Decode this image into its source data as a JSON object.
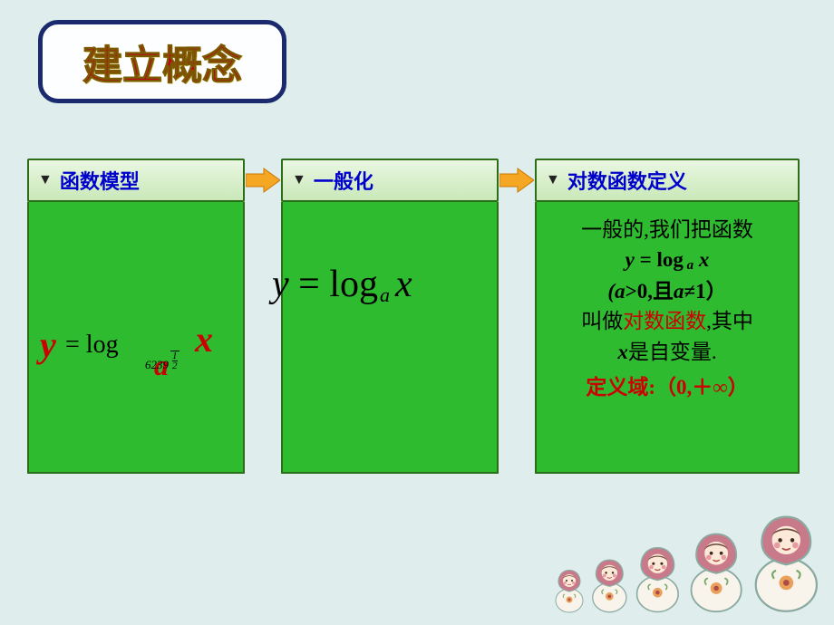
{
  "title": "建立概念",
  "panels": [
    {
      "heading": "函数模型"
    },
    {
      "heading": "一般化"
    },
    {
      "heading": "对数函数定义"
    }
  ],
  "formula1": {
    "y": "y",
    "eq": "= log",
    "a": "a",
    "x": "x",
    "sub_idx": "6239",
    "sub_root_num": "1",
    "sub_root_den": "2"
  },
  "formula2": {
    "y": "y",
    "eq": " = ",
    "log": "log",
    "a": "a",
    "x": "x"
  },
  "definition": {
    "l1a": "一般的,我们把函数",
    "l2_y": "y",
    "l2_eq": " = log",
    "l2_a": " a",
    "l2_x": " x",
    "l3": "(a>0,且a≠1）",
    "l4a": "叫做",
    "l4b": "对数函数",
    "l4c": ",其中",
    "l5a": "x",
    "l5b": "是自变量.",
    "domain_label": "定义域:",
    "domain_value": "（0,＋∞）"
  },
  "colors": {
    "bg": "#dfeeed",
    "panel_body": "#2fbb2f",
    "panel_border": "#2a6e1a",
    "heading_text": "#0000cc",
    "title_text": "#c00020",
    "accent_red": "#cc0000",
    "arrow_fill": "#f5a623",
    "arrow_stroke": "#c97a00"
  },
  "doll_heights": [
    50,
    62,
    76,
    92,
    112
  ]
}
